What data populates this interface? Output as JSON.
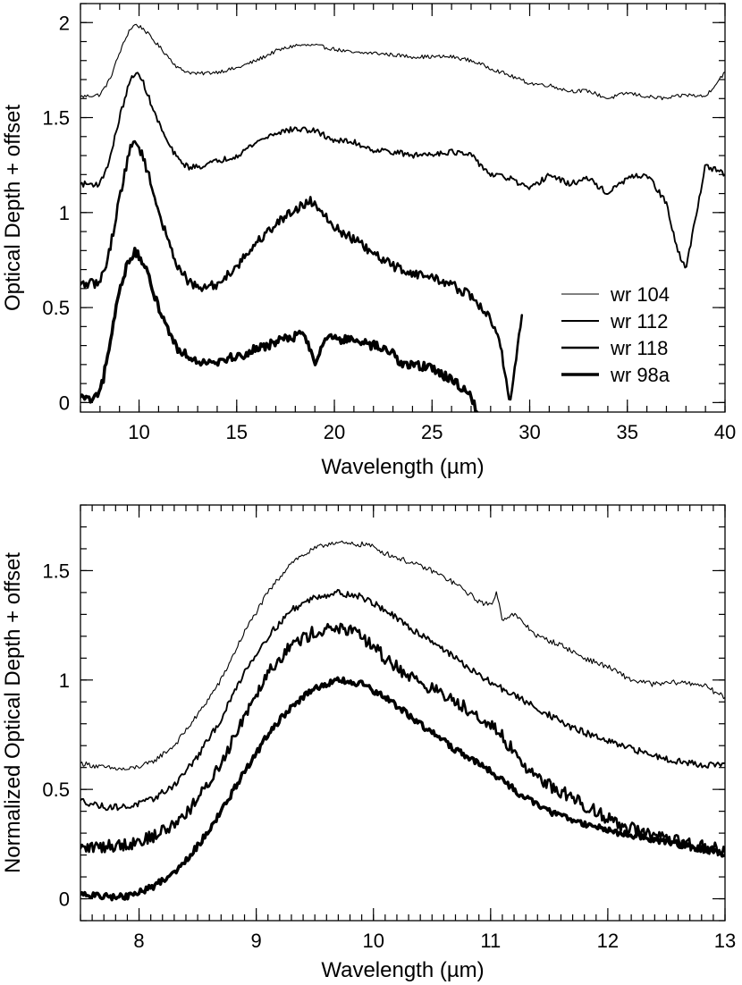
{
  "chart_data": [
    {
      "type": "line",
      "xlabel": "Wavelength (µm)",
      "ylabel": "Optical Depth + offset",
      "xlim": [
        7,
        40
      ],
      "ylim": [
        -0.05,
        2.1
      ],
      "xticks": [
        10,
        15,
        20,
        25,
        30,
        35,
        40
      ],
      "yticks": [
        0,
        0.5,
        1,
        1.5,
        2
      ],
      "xtick_labels": [
        "10",
        "15",
        "20",
        "25",
        "30",
        "35",
        "40"
      ],
      "ytick_labels": [
        "0",
        "0.5",
        "1",
        "1.5",
        "2"
      ],
      "x_minor_step": 1,
      "y_minor_step": 0.1,
      "legend": {
        "position": "center-right",
        "entries": [
          "wr 104",
          "wr 112",
          "wr 118",
          "wr 98a"
        ]
      },
      "series": [
        {
          "name": "wr 104",
          "stroke": "thin",
          "noise": 0.01,
          "x": [
            7,
            8,
            8.5,
            9,
            9.5,
            9.8,
            10.2,
            10.8,
            11.5,
            12,
            12.5,
            13,
            14,
            15,
            16,
            17,
            18,
            19,
            20,
            21,
            22,
            23,
            24,
            25,
            26,
            27,
            28,
            29,
            30,
            31,
            32,
            33,
            34,
            35,
            36,
            37,
            38,
            39,
            40
          ],
          "y": [
            1.61,
            1.62,
            1.7,
            1.84,
            1.96,
            1.99,
            1.97,
            1.9,
            1.82,
            1.76,
            1.74,
            1.73,
            1.74,
            1.76,
            1.8,
            1.85,
            1.88,
            1.88,
            1.86,
            1.84,
            1.84,
            1.83,
            1.82,
            1.82,
            1.82,
            1.8,
            1.76,
            1.72,
            1.68,
            1.67,
            1.64,
            1.64,
            1.6,
            1.63,
            1.61,
            1.6,
            1.62,
            1.61,
            1.74
          ]
        },
        {
          "name": "wr 112",
          "stroke": "medium",
          "noise": 0.015,
          "x": [
            7,
            8,
            8.5,
            9,
            9.5,
            9.8,
            10.2,
            10.8,
            11.5,
            12,
            12.5,
            13,
            14,
            15,
            16,
            17,
            18,
            19,
            20,
            21,
            22,
            23,
            24,
            25,
            26,
            27,
            28,
            29,
            30,
            31,
            32,
            33,
            34,
            35,
            36,
            37,
            37.5,
            38,
            38.5,
            39,
            40
          ],
          "y": [
            1.15,
            1.15,
            1.28,
            1.5,
            1.68,
            1.74,
            1.69,
            1.52,
            1.36,
            1.28,
            1.24,
            1.24,
            1.27,
            1.3,
            1.37,
            1.42,
            1.44,
            1.43,
            1.38,
            1.37,
            1.33,
            1.32,
            1.3,
            1.31,
            1.32,
            1.3,
            1.2,
            1.18,
            1.12,
            1.2,
            1.15,
            1.18,
            1.1,
            1.18,
            1.2,
            1.05,
            0.82,
            0.7,
            0.98,
            1.25,
            1.2
          ]
        },
        {
          "name": "wr 118",
          "stroke": "thick",
          "noise": 0.025,
          "x": [
            7,
            8,
            8.5,
            9,
            9.5,
            9.8,
            10.2,
            10.8,
            11.5,
            12,
            12.5,
            13,
            14,
            15,
            16,
            17,
            18,
            18.8,
            19.5,
            20,
            21,
            22,
            23,
            24,
            25,
            26,
            27,
            27.5,
            28,
            28.5,
            29,
            29.6
          ],
          "y": [
            0.62,
            0.63,
            0.8,
            1.08,
            1.32,
            1.38,
            1.3,
            1.08,
            0.84,
            0.72,
            0.64,
            0.6,
            0.62,
            0.72,
            0.84,
            0.94,
            1.02,
            1.06,
            1.0,
            0.92,
            0.86,
            0.78,
            0.72,
            0.68,
            0.66,
            0.62,
            0.56,
            0.5,
            0.44,
            0.3,
            0.0,
            0.46
          ]
        },
        {
          "name": "wr 98a",
          "stroke": "thickest",
          "noise": 0.025,
          "x": [
            7,
            7.5,
            8,
            8.5,
            9,
            9.5,
            9.8,
            10.2,
            10.8,
            11.5,
            12,
            12.5,
            13,
            14,
            15,
            16,
            17,
            18,
            18.5,
            19,
            19.5,
            20,
            21,
            22,
            23,
            23.5,
            24,
            25,
            26,
            26.5,
            27,
            27.3
          ],
          "y": [
            0.03,
            0.01,
            0.04,
            0.3,
            0.6,
            0.76,
            0.79,
            0.74,
            0.56,
            0.38,
            0.28,
            0.25,
            0.22,
            0.22,
            0.24,
            0.28,
            0.32,
            0.35,
            0.36,
            0.2,
            0.35,
            0.34,
            0.32,
            0.3,
            0.26,
            0.2,
            0.2,
            0.18,
            0.12,
            0.08,
            0.04,
            -0.05
          ]
        }
      ]
    },
    {
      "type": "line",
      "xlabel": "Wavelength (µm)",
      "ylabel": "Normalized Optical Depth + offset",
      "xlim": [
        7.5,
        13
      ],
      "ylim": [
        -0.1,
        1.8
      ],
      "xticks": [
        8,
        9,
        10,
        11,
        12,
        13
      ],
      "yticks": [
        0,
        0.5,
        1,
        1.5
      ],
      "xtick_labels": [
        "8",
        "9",
        "10",
        "11",
        "12",
        "13"
      ],
      "ytick_labels": [
        "0",
        "0.5",
        "1",
        "1.5"
      ],
      "x_minor_step": 0.1,
      "y_minor_step": 0.1,
      "series": [
        {
          "name": "wr 104",
          "stroke": "thin",
          "noise": 0.012,
          "x": [
            7.5,
            7.7,
            7.9,
            8.1,
            8.3,
            8.5,
            8.7,
            8.9,
            9.1,
            9.3,
            9.5,
            9.65,
            9.8,
            9.95,
            10.1,
            10.3,
            10.5,
            10.7,
            10.9,
            11.0,
            11.05,
            11.1,
            11.2,
            11.4,
            11.6,
            11.8,
            12.0,
            12.2,
            12.4,
            12.6,
            12.8,
            13.0
          ],
          "y": [
            0.62,
            0.6,
            0.59,
            0.62,
            0.7,
            0.84,
            1.0,
            1.22,
            1.4,
            1.54,
            1.6,
            1.63,
            1.62,
            1.62,
            1.58,
            1.54,
            1.5,
            1.44,
            1.36,
            1.34,
            1.4,
            1.28,
            1.3,
            1.2,
            1.16,
            1.1,
            1.06,
            1.0,
            0.98,
            0.99,
            0.98,
            0.92
          ]
        },
        {
          "name": "wr 112",
          "stroke": "medium",
          "noise": 0.015,
          "x": [
            7.5,
            7.7,
            7.9,
            8.1,
            8.3,
            8.5,
            8.7,
            8.9,
            9.1,
            9.3,
            9.5,
            9.7,
            9.9,
            10.1,
            10.3,
            10.5,
            10.7,
            10.9,
            11.1,
            11.3,
            11.5,
            11.7,
            11.9,
            12.1,
            12.3,
            12.5,
            12.7,
            12.9,
            13.0
          ],
          "y": [
            0.45,
            0.42,
            0.42,
            0.45,
            0.52,
            0.65,
            0.82,
            1.04,
            1.2,
            1.32,
            1.38,
            1.4,
            1.38,
            1.32,
            1.24,
            1.18,
            1.1,
            1.02,
            0.96,
            0.9,
            0.84,
            0.78,
            0.74,
            0.7,
            0.67,
            0.64,
            0.62,
            0.61,
            0.62
          ]
        },
        {
          "name": "wr 118",
          "stroke": "thick",
          "noise": 0.03,
          "x": [
            7.5,
            7.7,
            7.9,
            8.1,
            8.3,
            8.5,
            8.7,
            8.9,
            9.1,
            9.3,
            9.5,
            9.7,
            9.9,
            10.1,
            10.3,
            10.5,
            10.7,
            10.9,
            11.1,
            11.3,
            11.5,
            11.7,
            11.9,
            12.1,
            12.3,
            12.5,
            12.7,
            12.9,
            13.0
          ],
          "y": [
            0.23,
            0.24,
            0.25,
            0.28,
            0.34,
            0.45,
            0.62,
            0.84,
            1.04,
            1.16,
            1.22,
            1.24,
            1.2,
            1.1,
            1.02,
            0.96,
            0.9,
            0.84,
            0.74,
            0.6,
            0.52,
            0.46,
            0.4,
            0.34,
            0.3,
            0.27,
            0.25,
            0.23,
            0.21
          ]
        },
        {
          "name": "wr 98a",
          "stroke": "thickest",
          "noise": 0.015,
          "x": [
            7.5,
            7.7,
            7.9,
            8.1,
            8.3,
            8.5,
            8.7,
            8.9,
            9.1,
            9.3,
            9.5,
            9.7,
            9.9,
            10.1,
            10.3,
            10.5,
            10.7,
            10.9,
            11.1,
            11.3,
            11.5,
            11.7,
            11.9,
            12.1,
            12.3,
            12.5,
            12.7,
            12.9,
            13.0
          ],
          "y": [
            0.02,
            0.01,
            0.01,
            0.05,
            0.12,
            0.24,
            0.4,
            0.58,
            0.75,
            0.88,
            0.96,
            1.0,
            0.98,
            0.92,
            0.84,
            0.76,
            0.68,
            0.62,
            0.54,
            0.46,
            0.4,
            0.36,
            0.33,
            0.3,
            0.28,
            0.26,
            0.24,
            0.22,
            0.2
          ]
        }
      ]
    }
  ]
}
